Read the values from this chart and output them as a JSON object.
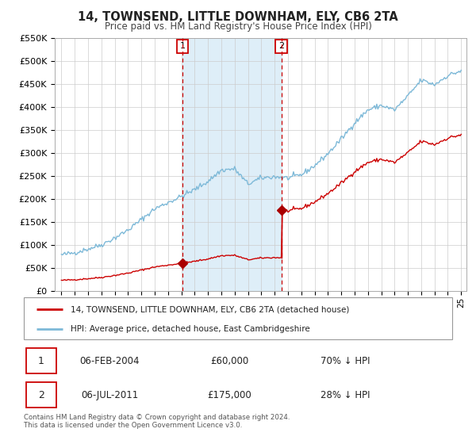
{
  "title": "14, TOWNSEND, LITTLE DOWNHAM, ELY, CB6 2TA",
  "subtitle": "Price paid vs. HM Land Registry's House Price Index (HPI)",
  "legend_line1": "14, TOWNSEND, LITTLE DOWNHAM, ELY, CB6 2TA (detached house)",
  "legend_line2": "HPI: Average price, detached house, East Cambridgeshire",
  "sale1_date": "06-FEB-2004",
  "sale1_price": "£60,000",
  "sale1_hpi": "70% ↓ HPI",
  "sale2_date": "06-JUL-2011",
  "sale2_price": "£175,000",
  "sale2_hpi": "28% ↓ HPI",
  "copyright": "Contains HM Land Registry data © Crown copyright and database right 2024.\nThis data is licensed under the Open Government Licence v3.0.",
  "hpi_color": "#7db9d8",
  "price_color": "#cc0000",
  "sale_marker_color": "#aa0000",
  "shaded_region_color": "#deeef8",
  "dashed_line_color": "#cc0000",
  "ylim": [
    0,
    550000
  ],
  "yticks": [
    0,
    50000,
    100000,
    150000,
    200000,
    250000,
    300000,
    350000,
    400000,
    450000,
    500000,
    550000
  ],
  "sale1_x": 2004.08,
  "sale1_price_val": 60000,
  "sale2_x": 2011.5,
  "sale2_price_val": 175000,
  "sale2_hpi_val": 75000,
  "background_color": "#ffffff",
  "grid_color": "#cccccc",
  "hpi_keypoints_x": [
    1995,
    1996,
    1997,
    1998,
    1999,
    2000,
    2001,
    2002,
    2003,
    2004,
    2005,
    2006,
    2007,
    2008,
    2009,
    2010,
    2011,
    2012,
    2013,
    2014,
    2015,
    2016,
    2017,
    2018,
    2019,
    2020,
    2021,
    2022,
    2023,
    2024,
    2025
  ],
  "hpi_keypoints_y": [
    78000,
    83000,
    91000,
    100000,
    115000,
    132000,
    155000,
    178000,
    192000,
    205000,
    220000,
    238000,
    262000,
    265000,
    232000,
    245000,
    248000,
    245000,
    252000,
    272000,
    298000,
    330000,
    365000,
    393000,
    403000,
    393000,
    423000,
    458000,
    448000,
    468000,
    478000
  ]
}
